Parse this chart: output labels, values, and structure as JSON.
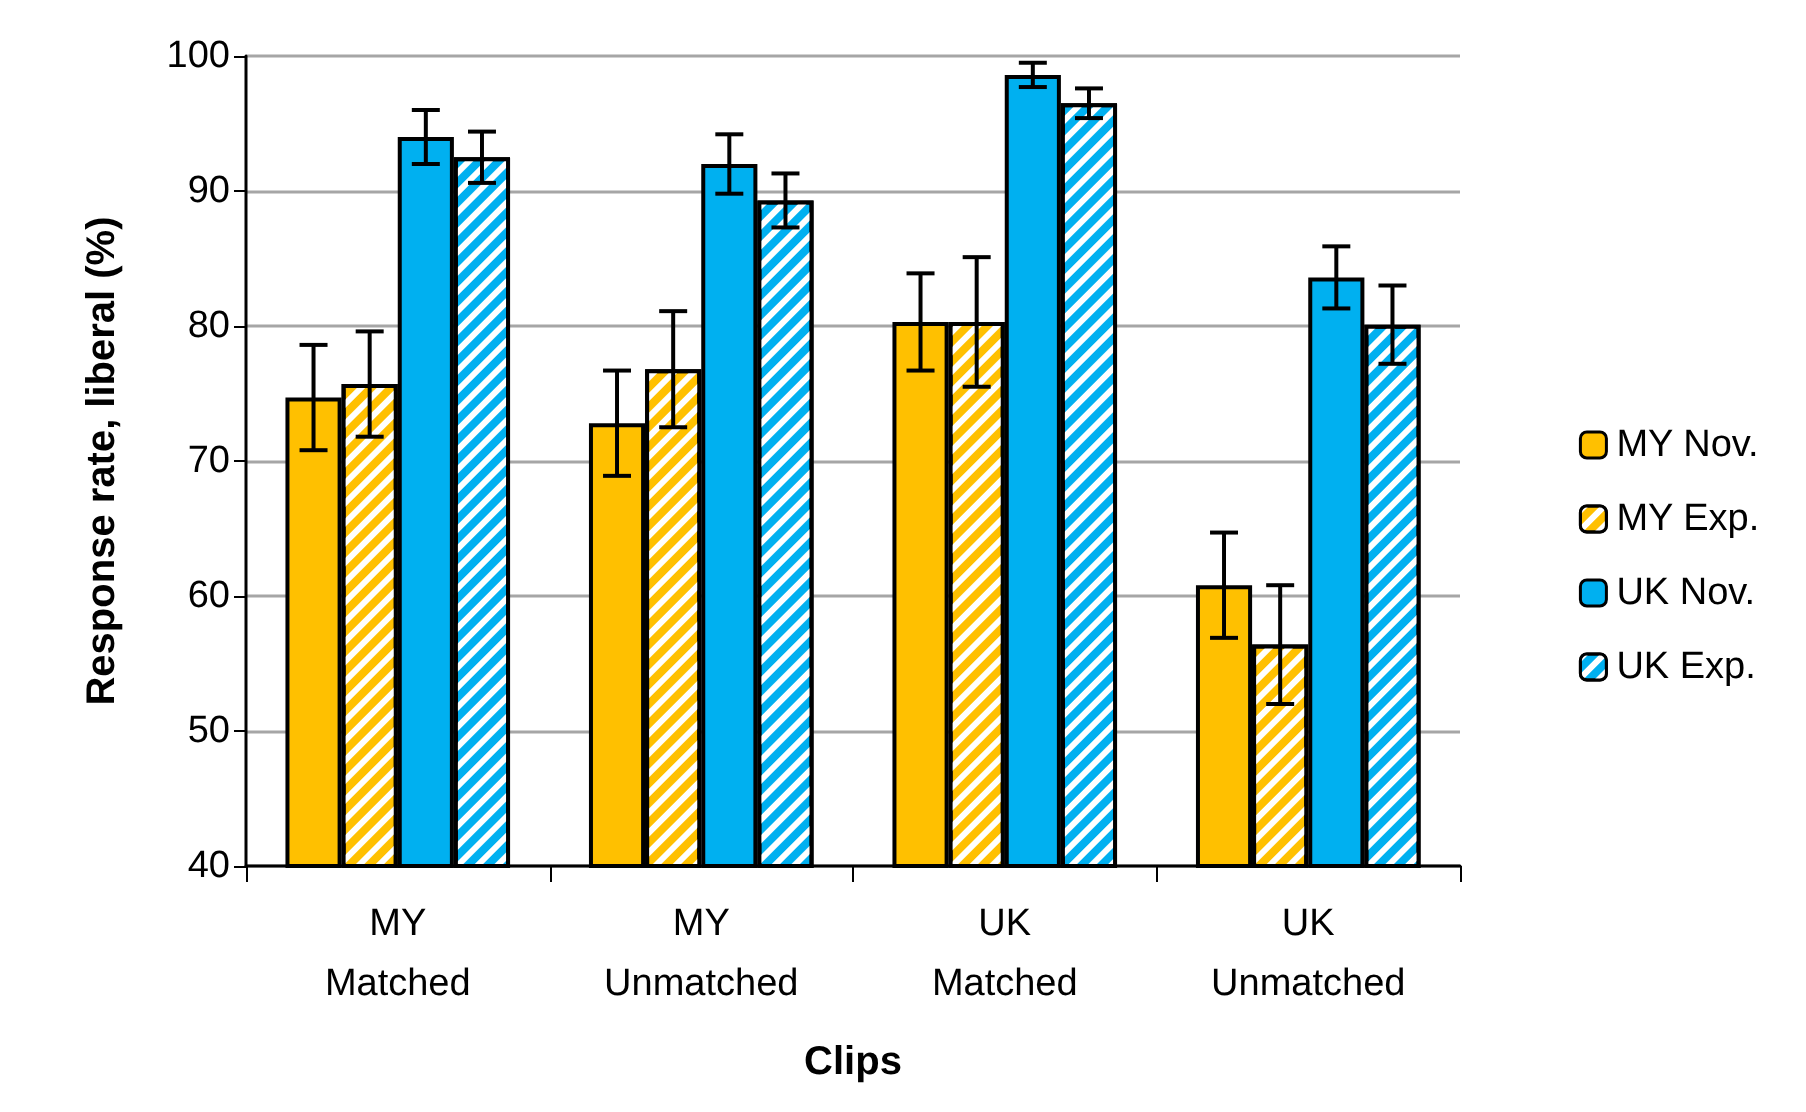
{
  "chart_data": {
    "type": "bar",
    "xlabel": "Clips",
    "ylabel": "Response rate, liberal (%)",
    "categories": [
      "MY\nMatched",
      "MY\nUnmatched",
      "UK\nMatched",
      "UK\nUnmatched"
    ],
    "series": [
      {
        "name": "MY Nov.",
        "color": "#ffc000",
        "values": [
          74.7,
          72.8,
          80.3,
          60.8
        ],
        "errors": [
          3.9,
          3.9,
          3.6,
          3.9
        ]
      },
      {
        "name": "MY Exp.",
        "color": "#ffc000",
        "values": [
          75.7,
          76.8,
          80.3,
          56.4
        ],
        "errors": [
          3.9,
          4.3,
          4.8,
          4.4
        ]
      },
      {
        "name": "UK Nov.",
        "color": "#00b0f0",
        "values": [
          94.0,
          92.0,
          98.6,
          83.6
        ],
        "errors": [
          2.0,
          2.2,
          0.9,
          2.3
        ]
      },
      {
        "name": "UK Exp.",
        "color": "#00b0f0",
        "values": [
          92.5,
          89.3,
          96.5,
          80.1
        ],
        "errors": [
          1.9,
          2.0,
          1.1,
          2.9
        ]
      }
    ],
    "ylim": [
      40,
      100
    ],
    "yticks": [
      40,
      50,
      60,
      70,
      80,
      90,
      100
    ],
    "grid": "y",
    "legend": "right"
  }
}
